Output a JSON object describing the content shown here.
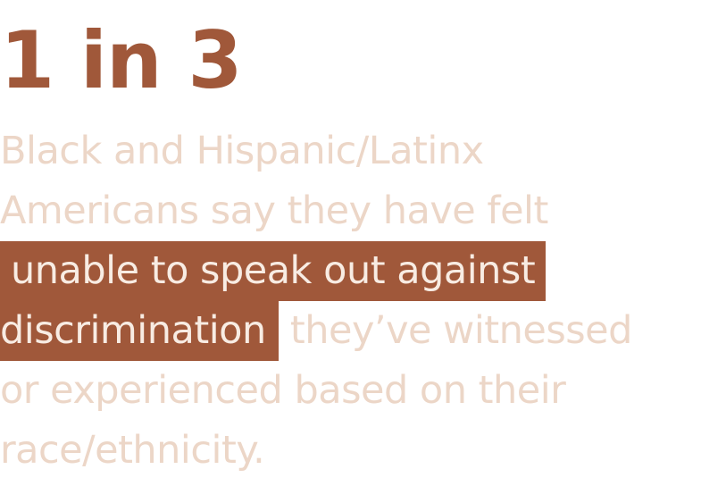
{
  "stat": {
    "headline": "1 in 3",
    "lines": [
      "Black and Hispanic/Latinx",
      "Americans say they have felt"
    ],
    "highlight_line_1": "unable to speak out against",
    "highlight_line_2": "discrimination",
    "after_highlight": "they’ve witnessed",
    "line_5": "or experienced based on their",
    "line_6": "race/ethnicity."
  },
  "colors": {
    "accent": "#a0583a",
    "body_text": "#ecd6c7",
    "highlight_text": "#f8ece3",
    "background": "#ffffff"
  }
}
